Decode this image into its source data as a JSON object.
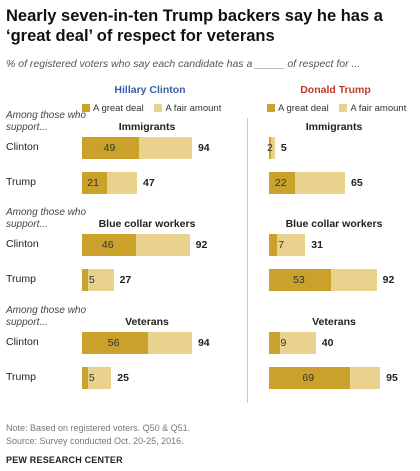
{
  "header": {
    "title": "Nearly seven-in-ten Trump backers say he has a ‘great deal’ of respect for veterans",
    "subtitle": "% of registered voters who say each candidate has a _____ of respect for ..."
  },
  "chart_data": {
    "type": "bar",
    "stacked": true,
    "orientation": "horizontal",
    "columns": [
      {
        "name": "Hillary Clinton",
        "color": "#3a5ea8"
      },
      {
        "name": "Donald Trump",
        "color": "#c0392b"
      }
    ],
    "legend": {
      "great_label": "A great deal",
      "fair_label": "A fair amount",
      "great_color": "#c9a12b",
      "fair_color": "#e9d18e"
    },
    "group_intro": "Among those who support...",
    "groups": [
      {
        "name": "Immigrants",
        "rows": [
          {
            "label": "Clinton",
            "hillary": {
              "great": 49,
              "total": 94
            },
            "trump": {
              "great": 2,
              "total": 5
            }
          },
          {
            "label": "Trump",
            "hillary": {
              "great": 21,
              "total": 47
            },
            "trump": {
              "great": 22,
              "total": 65
            }
          }
        ]
      },
      {
        "name": "Blue collar workers",
        "rows": [
          {
            "label": "Clinton",
            "hillary": {
              "great": 46,
              "total": 92
            },
            "trump": {
              "great": 7,
              "total": 31
            }
          },
          {
            "label": "Trump",
            "hillary": {
              "great": 5,
              "total": 27
            },
            "trump": {
              "great": 53,
              "total": 92
            }
          }
        ]
      },
      {
        "name": "Veterans",
        "rows": [
          {
            "label": "Clinton",
            "hillary": {
              "great": 56,
              "total": 94
            },
            "trump": {
              "great": 9,
              "total": 40
            }
          },
          {
            "label": "Trump",
            "hillary": {
              "great": 5,
              "total": 25
            },
            "trump": {
              "great": 69,
              "total": 95
            }
          }
        ]
      }
    ]
  },
  "footer": {
    "note": "Note: Based on registered voters. Q50 & Q51.",
    "source": "Source: Survey conducted Oct. 20-25, 2016.",
    "org": "PEW RESEARCH CENTER"
  }
}
